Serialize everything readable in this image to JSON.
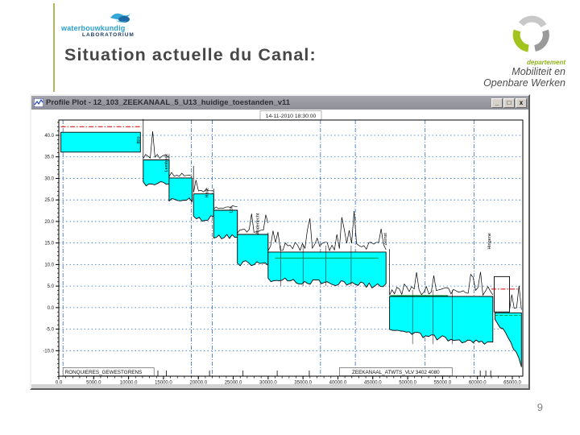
{
  "slide": {
    "title": "Situation actuelle du Canal:",
    "page_number": "9"
  },
  "logo_left": {
    "name": "waterbouwkundig",
    "sub": "LABORATORIUM"
  },
  "logo_right": {
    "dept": "departement",
    "line1": "Mobiliteit en",
    "line2": "Openbare Werken"
  },
  "window": {
    "title": "Profile Plot - 12_103_ZEEKANAAL_5_U13_huidige_toestanden_v11",
    "minimize": "_",
    "maximize": "□",
    "close": "x"
  },
  "chart_data": {
    "type": "area",
    "title": "14-11-2010 18:30:00",
    "xlabel": "",
    "ylabel": "",
    "xlim": [
      0,
      66500
    ],
    "ylim": [
      -16,
      44.7
    ],
    "grid": true,
    "xticks": [
      0,
      5000,
      10000,
      15000,
      20000,
      25000,
      30000,
      35000,
      40000,
      45000,
      50000,
      55000,
      60000,
      65000
    ],
    "yticks": [
      40,
      35,
      30,
      25,
      20,
      15,
      10,
      5,
      0,
      -5,
      -10
    ],
    "x_gridlines": [
      600,
      19000,
      22000,
      37500,
      42500,
      52500,
      59500
    ],
    "colors": {
      "water": "#00ffff",
      "grid": "#2f6fc0",
      "outline": "#000000",
      "red_line": "#d40000",
      "green_line": "#009944"
    },
    "pools": [
      {
        "x0": 300,
        "x1": 11700,
        "surface": 40.7,
        "bed": 36.1,
        "flat": true,
        "spike": 0
      },
      {
        "x0": 12100,
        "x1": 15800,
        "surface": 34.3,
        "bed": 28.8,
        "spike": 9.5
      },
      {
        "x0": 15800,
        "x1": 19100,
        "surface": 30.1,
        "bed": 24.9,
        "spike": 5.5
      },
      {
        "x0": 19300,
        "x1": 22200,
        "surface": 26.4,
        "bed": 20.7,
        "spike": 6.5
      },
      {
        "x0": 22200,
        "x1": 25600,
        "surface": 22.6,
        "bed": 16.6,
        "spike": 5
      },
      {
        "x0": 25600,
        "x1": 30000,
        "surface": 17.0,
        "bed": 10.3,
        "spike": 5.5
      },
      {
        "x0": 30000,
        "x1": 46900,
        "surface": 12.9,
        "bed": 6.5,
        "bed2": 5.0,
        "spike": 4.5
      },
      {
        "x0": 47400,
        "x1": 62200,
        "surface": 2.6,
        "bed": -5.5,
        "bed2": -8.5,
        "spike": 11
      },
      {
        "x0": 62500,
        "x1": 66300,
        "surface": -1.2,
        "bed": -13.5,
        "deep": true,
        "spike": 3
      }
    ],
    "locks": [
      {
        "x": 11600,
        "y": 38.0,
        "label": "Ittre"
      },
      {
        "x": 15600,
        "y": 31.5,
        "label": "Lembeek"
      },
      {
        "x": 21400,
        "y": 25.5,
        "label": "Halle"
      },
      {
        "x": 24900,
        "y": 22.0,
        "label": "Lot"
      },
      {
        "x": 28700,
        "y": 17.0,
        "label": "Anderlecht"
      },
      {
        "x": 47000,
        "y": 14.5,
        "label": "Zemst"
      },
      {
        "x": 61900,
        "y": 13.5,
        "label": "Hingene"
      }
    ],
    "annotations": {
      "red_dashdot": [
        {
          "x0": 300,
          "x1": 11900,
          "y": 42.0
        },
        {
          "x0": 62000,
          "x1": 66000,
          "y": 4.3
        }
      ],
      "green_solid": [
        {
          "x0": 31000,
          "x1": 45800,
          "y": 11.5
        },
        {
          "x0": 47500,
          "x1": 55800,
          "y": 2.8
        }
      ],
      "green_dash": [
        {
          "x0": 62500,
          "x1": 66200,
          "y": -1.8
        }
      ],
      "structures": [
        {
          "x0": 62400,
          "x1": 64600,
          "top": 7.2,
          "bottom": -1.0
        }
      ]
    },
    "section_lines": [
      31800,
      35000,
      38300,
      41900,
      50700,
      53600,
      56400
    ],
    "bottom_ticks": [
      12400,
      12900,
      13500,
      14200,
      15400,
      21600,
      26400,
      31300,
      35900,
      41700,
      44900,
      52700,
      54200,
      55500,
      60400,
      61200,
      61900
    ],
    "bottom_labels": [
      {
        "text": "RONQUIERES_GEWESTGRENS",
        "x": 600,
        "align": "left",
        "w": 113
      },
      {
        "text": "ZEEKANAAL_ATWTS_VLV 3402 4080",
        "x": 48300,
        "align": "center",
        "w": 140
      }
    ]
  }
}
